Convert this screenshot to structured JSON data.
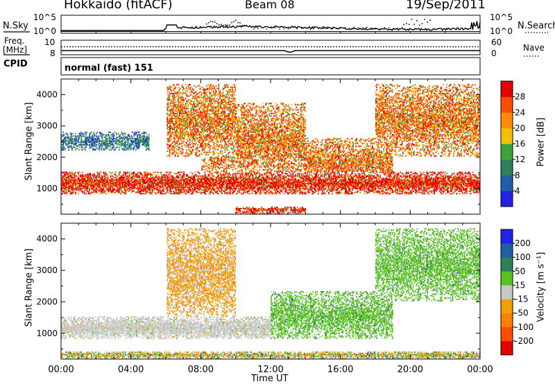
{
  "header": {
    "station": "Hokkaido (fitACF)",
    "beam": "Beam 08",
    "date": "19/Sep/2011"
  },
  "aux_panels": {
    "nsky_label": "N.Sky",
    "nsearch_label": "N.Search",
    "noise_ticks_left": [
      "10^5",
      "10^0"
    ],
    "noise_ticks_right": [
      "10^5",
      "10^0"
    ],
    "freq_label_line1": "Freq.",
    "freq_label_line2": "[MHz]",
    "freq_ticks": [
      "10",
      "8"
    ],
    "nave_label": "Nave",
    "nave_ticks": [
      "60",
      "0"
    ],
    "cpid_label": "CPID",
    "cpid_value": "normal (fast) 151"
  },
  "colors": {
    "power_scale": [
      "#2222e6",
      "#1f5fa8",
      "#2f7f5a",
      "#3aa33a",
      "#f2c200",
      "#ff8c00",
      "#ff4d00",
      "#e60000"
    ],
    "velocity_scale": [
      "#2222e6",
      "#1f5fa8",
      "#2f7f5a",
      "#56c41c",
      "#c8c8c8",
      "#f2a000",
      "#ff8000",
      "#ff4d00",
      "#e60000"
    ]
  },
  "chart_data": [
    {
      "type": "heatmap",
      "title": "Power",
      "xlabel": "Time UT",
      "ylabel": "Slant Range [km]",
      "x_ticks": [
        "00:00",
        "04:00",
        "08:00",
        "12:00",
        "16:00",
        "20:00",
        "00:00"
      ],
      "xlim_hours": [
        0,
        24
      ],
      "ylim_km": [
        180,
        4500
      ],
      "y_ticks": [
        1000,
        2000,
        3000,
        4000
      ],
      "colorbar_label": "Power [dB]",
      "colorbar_ticks": [
        "4",
        "8",
        "12",
        "16",
        "20",
        "24",
        "28"
      ],
      "colorbar_range": [
        0,
        32
      ],
      "echo_regions": [
        {
          "t": [
            0,
            24
          ],
          "range_km": [
            800,
            1500
          ],
          "level": "strong"
        },
        {
          "t": [
            0,
            5
          ],
          "range_km": [
            2200,
            2800
          ],
          "level": "weak"
        },
        {
          "t": [
            6,
            10
          ],
          "range_km": [
            2000,
            4300
          ],
          "level": "medium"
        },
        {
          "t": [
            8,
            14
          ],
          "range_km": [
            1300,
            3700
          ],
          "level": "medium"
        },
        {
          "t": [
            12,
            19
          ],
          "range_km": [
            1000,
            2600
          ],
          "level": "medium"
        },
        {
          "t": [
            18,
            24
          ],
          "range_km": [
            2000,
            4300
          ],
          "level": "medium"
        },
        {
          "t": [
            10,
            14
          ],
          "range_km": [
            180,
            400
          ],
          "level": "strong"
        }
      ]
    },
    {
      "type": "heatmap",
      "title": "Velocity",
      "xlabel": "Time UT",
      "ylabel": "Slant Range [km]",
      "x_ticks": [
        "00:00",
        "04:00",
        "08:00",
        "12:00",
        "16:00",
        "20:00",
        "00:00"
      ],
      "xlim_hours": [
        0,
        24
      ],
      "ylim_km": [
        180,
        4500
      ],
      "y_ticks": [
        1000,
        2000,
        3000,
        4000
      ],
      "colorbar_label": "Velocity [m s⁻¹]",
      "colorbar_ticks": [
        "200",
        "100",
        "50",
        "15",
        "-15",
        "-50",
        "-100",
        "-200"
      ],
      "colorbar_range": [
        -250,
        250
      ],
      "echo_regions": [
        {
          "t": [
            0,
            12
          ],
          "range_km": [
            800,
            1500
          ],
          "velocity_class": "ground-scatter"
        },
        {
          "t": [
            12,
            19
          ],
          "range_km": [
            800,
            2300
          ],
          "velocity_class": "positive"
        },
        {
          "t": [
            18,
            24
          ],
          "range_km": [
            2000,
            4300
          ],
          "velocity_class": "positive"
        },
        {
          "t": [
            6,
            10
          ],
          "range_km": [
            1500,
            4300
          ],
          "velocity_class": "negative"
        },
        {
          "t": [
            0,
            24
          ],
          "range_km": [
            180,
            400
          ],
          "velocity_class": "mixed"
        }
      ]
    }
  ]
}
